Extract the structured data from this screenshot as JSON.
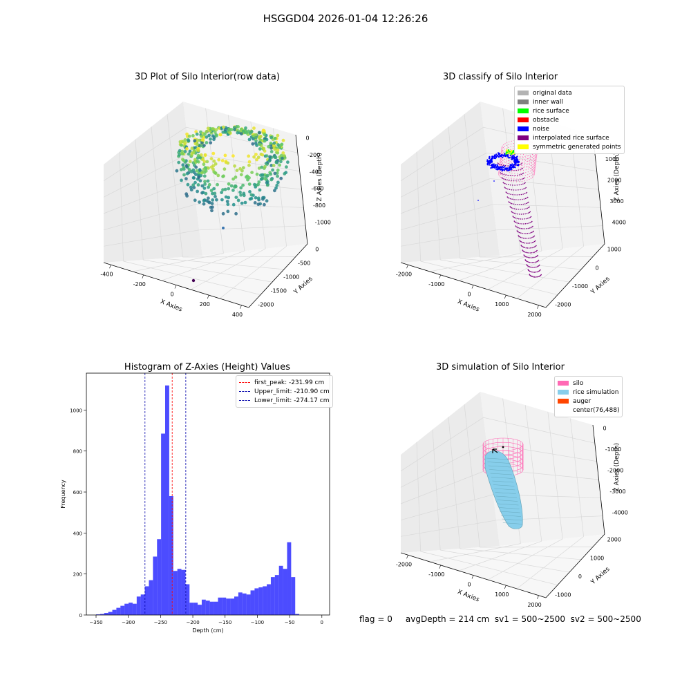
{
  "suptitle": "HSGGD04 2026-01-04 12:26:26",
  "footer": "flag = 0     avgDepth = 214 cm  sv1 = 500~2500  sv2 = 500~2500",
  "colors": {
    "original": "#b3b3b3",
    "inner_wall": "#808080",
    "rice_surface": "#00ff00",
    "obstacle": "#ff0000",
    "noise": "#0000ff",
    "interp": "#800080",
    "sym": "#ffff00",
    "silo": "#ff69b4",
    "rice_sim": "#87ceeb",
    "auger": "#ff4500",
    "hist_bar": "#0000ff"
  },
  "chart_data": [
    {
      "type": "scatter",
      "title": "3D Plot of Silo Interior(row data)",
      "xlabel": "X Axies",
      "ylabel": "Y Axies",
      "zlabel": "Z Axies (Depth)",
      "x_ticks": [
        "-400",
        "-200",
        "0",
        "200",
        "400"
      ],
      "y_ticks": [
        "0",
        "-500",
        "-1000",
        "-1500",
        "-2000"
      ],
      "z_ticks": [
        "0",
        "-200",
        "-400",
        "-600",
        "-800",
        "-1000"
      ],
      "colormap": "viridis"
    },
    {
      "type": "scatter",
      "title": "3D classify of Silo Interior",
      "xlabel": "X Axies",
      "ylabel": "Y Axies",
      "zlabel": "Z Axies (Depth)",
      "x_ticks": [
        "-2000",
        "-1000",
        "0",
        "1000",
        "2000"
      ],
      "y_ticks": [
        "1000",
        "0",
        "-1000",
        "-2000"
      ],
      "z_ticks": [
        "0",
        "1000",
        "2000",
        "3000",
        "4000"
      ],
      "legend": [
        "original data",
        "inner wall",
        "rice surface",
        "obstacle",
        "noise",
        "interpolated rice surface",
        "symmetric generated points"
      ],
      "legend_placement": "top-right"
    },
    {
      "type": "bar",
      "title": "Histogram of Z-Axies (Height) Values",
      "xlabel": "Depth (cm)",
      "ylabel": "Frequency",
      "xlim": [
        -365,
        12
      ],
      "ylim": [
        0,
        1180
      ],
      "x_ticks": [
        -350,
        -300,
        -250,
        -200,
        -150,
        -100,
        -50,
        0
      ],
      "y_ticks": [
        0,
        200,
        400,
        600,
        800,
        1000
      ],
      "bins_start": -350,
      "bin_width": 6.3,
      "values": [
        3,
        5,
        10,
        15,
        25,
        35,
        45,
        55,
        60,
        55,
        90,
        100,
        140,
        170,
        285,
        370,
        885,
        1120,
        580,
        215,
        225,
        220,
        150,
        60,
        60,
        50,
        75,
        70,
        65,
        65,
        85,
        85,
        80,
        80,
        90,
        110,
        105,
        100,
        120,
        130,
        135,
        140,
        150,
        185,
        195,
        240,
        225,
        355,
        185,
        5
      ],
      "vlines": [
        {
          "label": "first_peak: -231.99 cm",
          "x": -231.99,
          "color": "#ff0000"
        },
        {
          "label": "Upper_limit: -210.90 cm",
          "x": -210.9,
          "color": "#0000aa"
        },
        {
          "label": "Lower_limit: -274.17 cm",
          "x": -274.17,
          "color": "#0000aa"
        }
      ],
      "legend_placement": "top-right"
    },
    {
      "type": "scatter",
      "title": "3D simulation of Silo Interior",
      "xlabel": "X Axies",
      "ylabel": "Y Axies",
      "zlabel": "Z Axies (Depth)",
      "x_ticks": [
        "-2000",
        "-1000",
        "0",
        "1000",
        "2000"
      ],
      "y_ticks": [
        "2000",
        "1000",
        "0",
        "-1000"
      ],
      "z_ticks": [
        "0",
        "-1000",
        "-2000",
        "-3000",
        "-4000"
      ],
      "legend": [
        "silo",
        "rice simulation",
        "auger",
        "center(76,488)"
      ],
      "legend_placement": "top-right"
    }
  ]
}
